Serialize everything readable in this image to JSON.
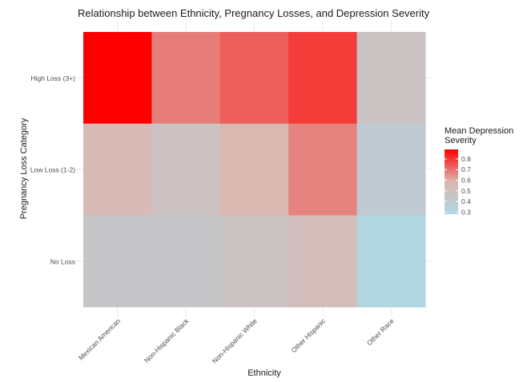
{
  "chart_data": {
    "type": "heatmap",
    "title": "Relationship between Ethnicity, Pregnancy Losses, and Depression Severity",
    "xlabel": "Ethnicity",
    "ylabel": "Pregnancy Loss Category",
    "x_categories": [
      "Mexican American",
      "Non-Hispanic Black",
      "Non-Hispanic White",
      "Other Hispanic",
      "Other Race"
    ],
    "y_categories": [
      "High Loss (3+)",
      "Low Loss (1-2)",
      "No Loss"
    ],
    "values": [
      [
        0.89,
        0.68,
        0.73,
        0.79,
        0.47
      ],
      [
        0.55,
        0.48,
        0.57,
        0.67,
        0.4
      ],
      [
        0.44,
        0.44,
        0.47,
        0.52,
        0.3
      ]
    ],
    "legend": {
      "title_line1": "Mean Depression",
      "title_line2": "Severity",
      "ticks": [
        "0.3",
        "0.4",
        "0.5",
        "0.6",
        "0.7",
        "0.8"
      ],
      "min": 0.28,
      "max": 0.89
    },
    "colors": {
      "low": "#add8e6",
      "mid": "#dcb6af",
      "high": "#ff0000"
    },
    "grid": true
  }
}
